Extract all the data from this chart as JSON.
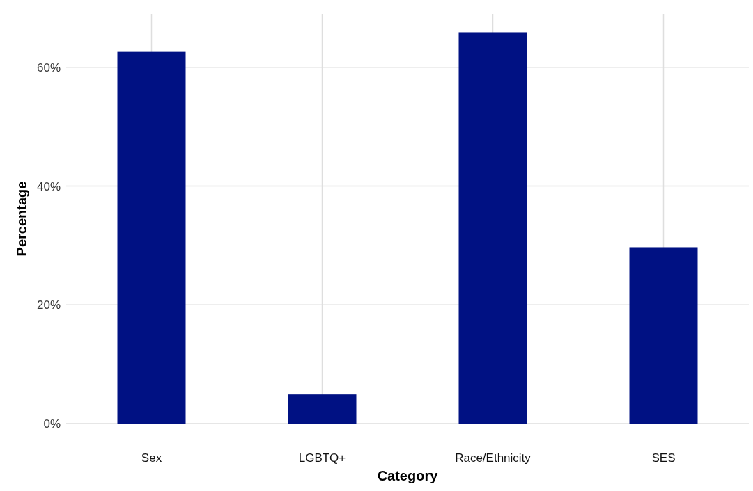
{
  "chart_data": {
    "type": "bar",
    "xlabel": "Category",
    "ylabel": "Percentage",
    "categories": [
      "Sex",
      "LGBTQ+",
      "Race/Ethnicity",
      "SES"
    ],
    "values": [
      62.6,
      4.9,
      65.9,
      29.7
    ],
    "color": "#001183",
    "ylim": [
      0,
      69
    ],
    "yticks": [
      {
        "value": 0,
        "label": "0%"
      },
      {
        "value": 20,
        "label": "20%"
      },
      {
        "value": 40,
        "label": "40%"
      },
      {
        "value": 60,
        "label": "60%"
      }
    ],
    "grid": true
  }
}
